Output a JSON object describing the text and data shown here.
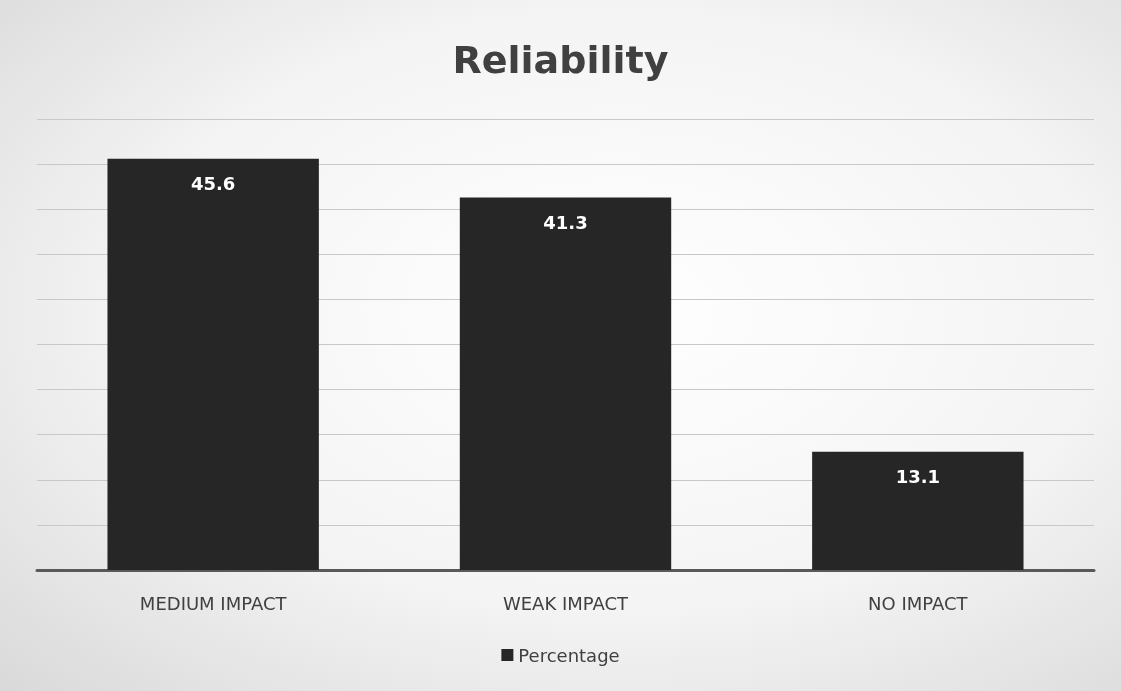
{
  "chart_data": {
    "type": "bar",
    "title": "Reliability",
    "categories": [
      "MEDIUM IMPACT",
      "WEAK IMPACT",
      "NO IMPACT"
    ],
    "series": [
      {
        "name": "Percentage",
        "color": "#262626",
        "values": [
          45.6,
          41.3,
          13.1
        ]
      }
    ],
    "ylim": [
      0,
      50
    ],
    "yticks": [
      {
        "value": 0,
        "label": null
      },
      {
        "value": 5,
        "label": null
      },
      {
        "value": 10,
        "label": null
      },
      {
        "value": 15,
        "label": null
      },
      {
        "value": 20,
        "label": null
      },
      {
        "value": 25,
        "label": null
      },
      {
        "value": 30,
        "label": null
      },
      {
        "value": 35,
        "label": null
      },
      {
        "value": 40,
        "label": null
      },
      {
        "value": 45,
        "label": null
      },
      {
        "value": 50,
        "label": null
      }
    ],
    "grid": "y",
    "tick_labels": "x",
    "legend": "bottom",
    "data_labels": true
  }
}
